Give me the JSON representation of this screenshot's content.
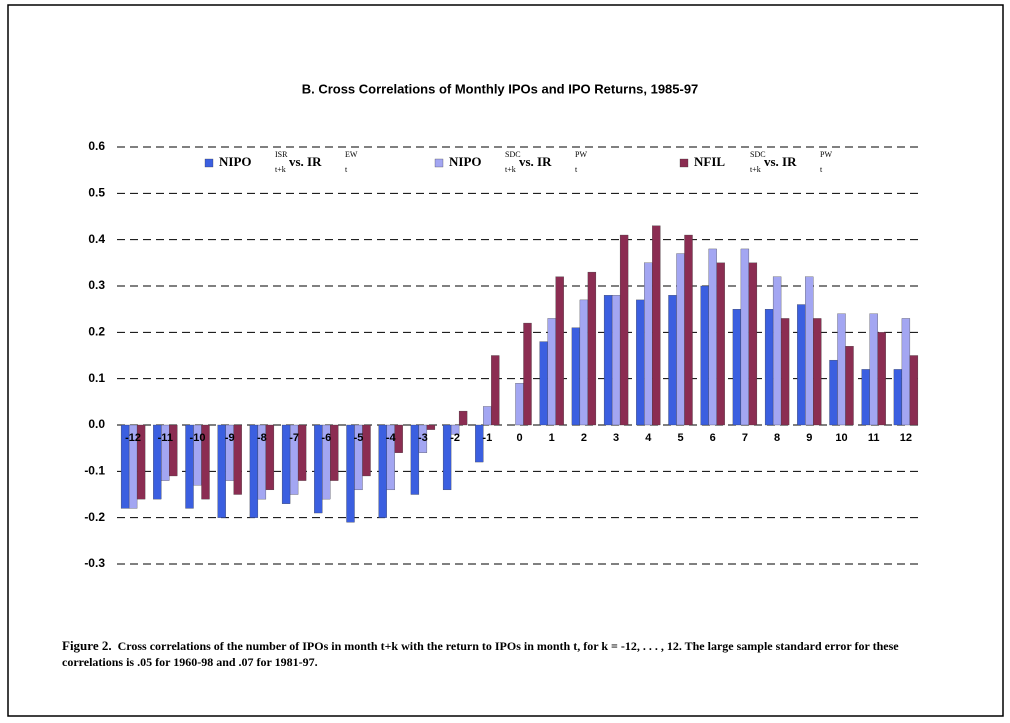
{
  "chart_data": {
    "type": "bar",
    "title": "B.  Cross Correlations of Monthly IPOs and IPO Returns, 1985-97",
    "categories": [
      "-12",
      "-11",
      "-10",
      "-9",
      "-8",
      "-7",
      "-6",
      "-5",
      "-4",
      "-3",
      "-2",
      "-1",
      "0",
      "1",
      "2",
      "3",
      "4",
      "5",
      "6",
      "7",
      "8",
      "9",
      "10",
      "11",
      "12"
    ],
    "series": [
      {
        "name": "NIPO",
        "name_sup": "ISR",
        "name_sub": "t+k",
        "vs": "vs. IR",
        "vs_sup": "EW",
        "vs_sub": "t",
        "color": "#3b5fe0",
        "values": [
          -0.18,
          -0.16,
          -0.18,
          -0.2,
          -0.2,
          -0.17,
          -0.19,
          -0.21,
          -0.2,
          -0.15,
          -0.14,
          -0.08,
          null,
          0.18,
          0.21,
          0.28,
          0.27,
          0.28,
          0.3,
          0.25,
          0.25,
          0.26,
          0.14,
          0.12,
          0.12
        ]
      },
      {
        "name": "NIPO",
        "name_sup": "SDC",
        "name_sub": "t+k",
        "vs": "vs. IR",
        "vs_sup": "PW",
        "vs_sub": "t",
        "color": "#a3a6f2",
        "values": [
          -0.18,
          -0.12,
          -0.13,
          -0.12,
          -0.16,
          -0.15,
          -0.16,
          -0.14,
          -0.14,
          -0.06,
          -0.02,
          0.04,
          0.09,
          0.23,
          0.27,
          0.28,
          0.35,
          0.37,
          0.38,
          0.38,
          0.32,
          0.32,
          0.24,
          0.24,
          0.23
        ]
      },
      {
        "name": "NFIL",
        "name_sup": "SDC",
        "name_sub": "t+k",
        "vs": "vs. IR",
        "vs_sup": "PW",
        "vs_sub": "t",
        "color": "#8b2d52",
        "values": [
          -0.16,
          -0.11,
          -0.16,
          -0.15,
          -0.14,
          -0.12,
          -0.12,
          -0.11,
          -0.06,
          -0.01,
          0.03,
          0.15,
          0.22,
          0.32,
          0.33,
          0.41,
          0.43,
          0.41,
          0.35,
          0.35,
          0.23,
          0.23,
          0.17,
          0.2,
          0.15
        ]
      }
    ],
    "ylim": [
      -0.3,
      0.6
    ],
    "yticks": [
      -0.3,
      -0.2,
      -0.1,
      {
        "value": 0,
        "label": "0.0"
      },
      0.1,
      0.2,
      0.3,
      0.4,
      0.5,
      0.6
    ],
    "grid": true
  },
  "caption": {
    "figure_label": "Figure 2.",
    "text": "Cross correlations of the number of IPOs in month t+k with the return to IPOs in month t, for k = -12, . . . , 12.  The large sample standard error for these correlations is .05 for 1960-98 and .07 for 1981-97."
  }
}
